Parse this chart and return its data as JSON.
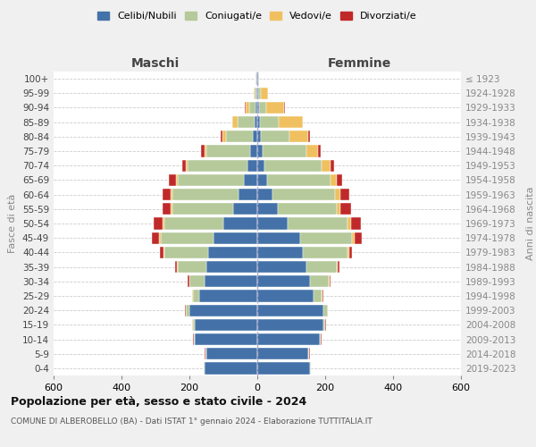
{
  "age_groups": [
    "0-4",
    "5-9",
    "10-14",
    "15-19",
    "20-24",
    "25-29",
    "30-34",
    "35-39",
    "40-44",
    "45-49",
    "50-54",
    "55-59",
    "60-64",
    "65-69",
    "70-74",
    "75-79",
    "80-84",
    "85-89",
    "90-94",
    "95-99",
    "100+"
  ],
  "birth_years": [
    "2019-2023",
    "2014-2018",
    "2009-2013",
    "2004-2008",
    "1999-2003",
    "1994-1998",
    "1989-1993",
    "1984-1988",
    "1979-1983",
    "1974-1978",
    "1969-1973",
    "1964-1968",
    "1959-1963",
    "1954-1958",
    "1949-1953",
    "1944-1948",
    "1939-1943",
    "1934-1938",
    "1929-1933",
    "1924-1928",
    "≤ 1923"
  ],
  "males": {
    "celibi": [
      155,
      150,
      185,
      185,
      200,
      170,
      155,
      150,
      145,
      130,
      100,
      70,
      55,
      40,
      30,
      20,
      12,
      8,
      5,
      2,
      2
    ],
    "coniugati": [
      2,
      2,
      2,
      5,
      10,
      20,
      45,
      85,
      130,
      155,
      175,
      180,
      195,
      195,
      175,
      130,
      80,
      50,
      20,
      5,
      2
    ],
    "vedovi": [
      1,
      1,
      1,
      1,
      1,
      1,
      1,
      2,
      2,
      5,
      5,
      5,
      5,
      5,
      5,
      5,
      10,
      15,
      10,
      3,
      1
    ],
    "divorziati": [
      1,
      1,
      1,
      1,
      1,
      2,
      3,
      5,
      10,
      20,
      25,
      25,
      25,
      20,
      10,
      10,
      5,
      2,
      2,
      0,
      0
    ]
  },
  "females": {
    "nubili": [
      155,
      150,
      185,
      195,
      195,
      165,
      155,
      145,
      135,
      125,
      90,
      60,
      45,
      30,
      20,
      15,
      10,
      8,
      5,
      3,
      2
    ],
    "coniugate": [
      2,
      2,
      2,
      5,
      12,
      25,
      55,
      90,
      130,
      155,
      175,
      175,
      185,
      185,
      170,
      130,
      85,
      55,
      20,
      8,
      2
    ],
    "vedove": [
      1,
      1,
      1,
      1,
      1,
      2,
      2,
      3,
      5,
      8,
      10,
      10,
      15,
      20,
      25,
      35,
      55,
      70,
      55,
      20,
      2
    ],
    "divorziate": [
      1,
      1,
      1,
      1,
      1,
      2,
      3,
      5,
      10,
      20,
      30,
      30,
      25,
      15,
      10,
      8,
      5,
      2,
      2,
      0,
      0
    ]
  },
  "colors": {
    "celibi_nubili": "#4472a8",
    "coniugati": "#b5c99a",
    "vedovi": "#f0c060",
    "divorziati": "#c0292a"
  },
  "xlim": 600,
  "title": "Popolazione per età, sesso e stato civile - 2024",
  "subtitle": "COMUNE DI ALBEROBELLO (BA) - Dati ISTAT 1° gennaio 2024 - Elaborazione TUTTITALIA.IT",
  "ylabel_left": "Fasce di età",
  "ylabel_right": "Anni di nascita",
  "xlabel_left": "Maschi",
  "xlabel_right": "Femmine",
  "bg_color": "#f0f0f0",
  "plot_bg": "#ffffff",
  "grid_color": "#cccccc"
}
